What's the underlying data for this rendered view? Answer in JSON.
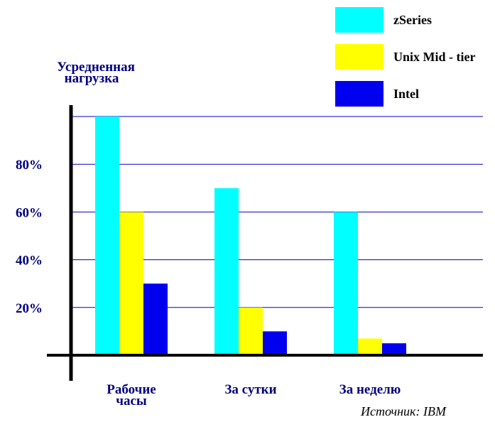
{
  "chart_data": {
    "type": "bar",
    "ylabel": [
      "Усредненная",
      "нагрузка"
    ],
    "categories": [
      [
        "Рабочие",
        "часы"
      ],
      [
        "За сутки"
      ],
      [
        "За неделю"
      ]
    ],
    "series": [
      {
        "name": "zSeries",
        "color": "#00FFFF",
        "values": [
          100,
          70,
          60
        ]
      },
      {
        "name": "Unix Mid - tier",
        "color": "#FFFF00",
        "values": [
          60,
          20,
          7
        ]
      },
      {
        "name": "Intel",
        "color": "#0000EE",
        "values": [
          30,
          10,
          5
        ]
      }
    ],
    "yticks": [
      "20%",
      "40%",
      "60%",
      "80%"
    ],
    "ytick_values": [
      20,
      40,
      60,
      80
    ],
    "ylim": [
      0,
      100
    ],
    "grid": true,
    "legend_position": "top-right",
    "source": "Источник: IBM"
  }
}
